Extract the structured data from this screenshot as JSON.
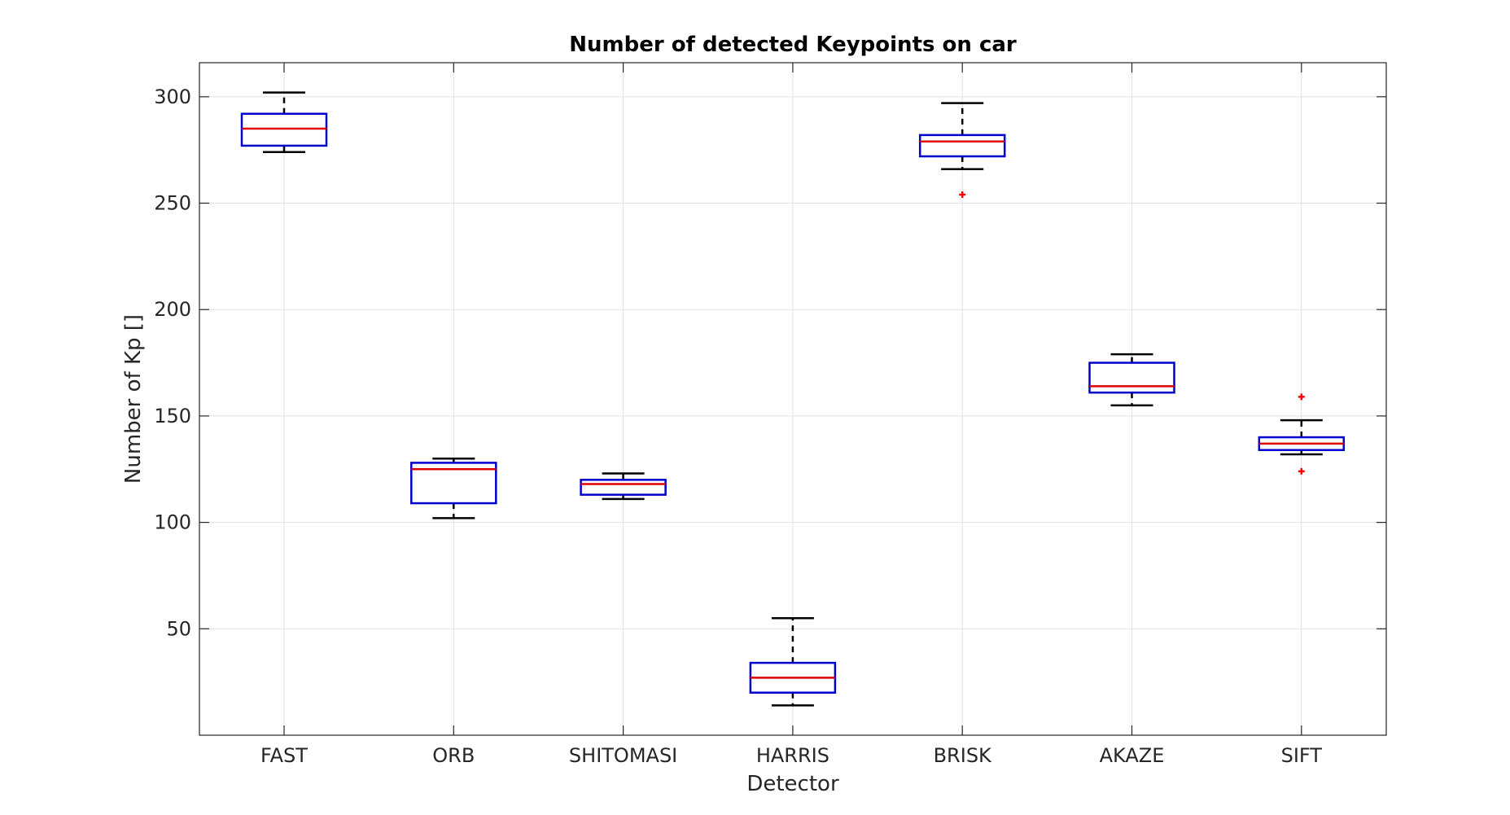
{
  "chart_data": {
    "type": "boxplot",
    "title": "Number of detected Keypoints on car",
    "xlabel": "Detector",
    "ylabel": "Number of Kp []",
    "ylim": [
      0,
      316
    ],
    "yticks": [
      50,
      100,
      150,
      200,
      250,
      300
    ],
    "grid": true,
    "categories": [
      "FAST",
      "ORB",
      "SHITOMASI",
      "HARRIS",
      "BRISK",
      "AKAZE",
      "SIFT"
    ],
    "boxes": [
      {
        "name": "FAST",
        "whisker_low": 274,
        "q1": 277,
        "median": 285,
        "q3": 292,
        "whisker_high": 302,
        "outliers": []
      },
      {
        "name": "ORB",
        "whisker_low": 102,
        "q1": 109,
        "median": 125,
        "q3": 128,
        "whisker_high": 130,
        "outliers": []
      },
      {
        "name": "SHITOMASI",
        "whisker_low": 111,
        "q1": 113,
        "median": 118,
        "q3": 120,
        "whisker_high": 123,
        "outliers": []
      },
      {
        "name": "HARRIS",
        "whisker_low": 14,
        "q1": 20,
        "median": 27,
        "q3": 34,
        "whisker_high": 55,
        "outliers": []
      },
      {
        "name": "BRISK",
        "whisker_low": 266,
        "q1": 272,
        "median": 279,
        "q3": 282,
        "whisker_high": 297,
        "outliers": [
          254
        ]
      },
      {
        "name": "AKAZE",
        "whisker_low": 155,
        "q1": 161,
        "median": 164,
        "q3": 175,
        "whisker_high": 179,
        "outliers": []
      },
      {
        "name": "SIFT",
        "whisker_low": 132,
        "q1": 134,
        "median": 137,
        "q3": 140,
        "whisker_high": 148,
        "outliers": [
          159,
          124
        ]
      }
    ],
    "colors": {
      "box": "#0000cc",
      "median": "#e00000",
      "whisker": "#000000",
      "outlier": "#ff0000",
      "grid": "#e1e1e1",
      "axis": "#262626"
    }
  }
}
